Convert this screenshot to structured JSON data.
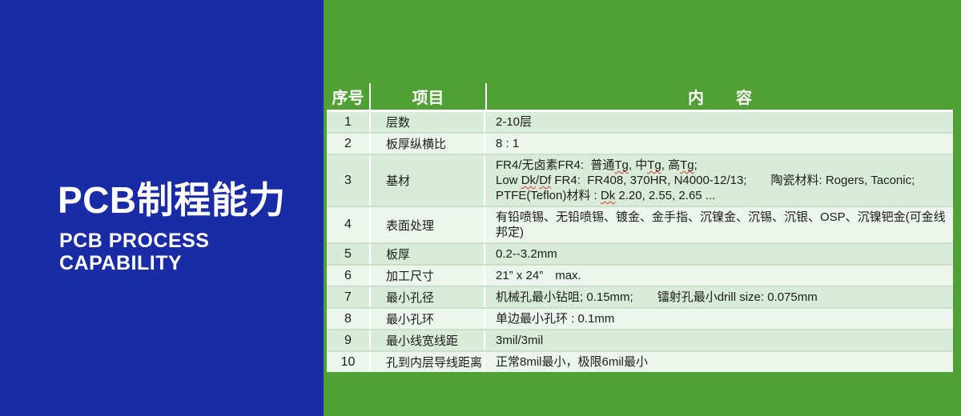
{
  "left_panel": {
    "title": "PCB制程能力",
    "subtitle_line1": "PCB PROCESS",
    "subtitle_line2": "CAPABILITY"
  },
  "table": {
    "headers": [
      "序号",
      "项目",
      "内　　容"
    ],
    "rows": [
      {
        "no": "1",
        "item": "层数",
        "content": [
          "2-10层"
        ]
      },
      {
        "no": "2",
        "item": "板厚纵横比",
        "content": [
          "8 : 1"
        ]
      },
      {
        "no": "3",
        "item": "基材",
        "content": [
          "FR4/无卤素FR4:  普通Tg, 中Tg, 高Tg;",
          "Low Dk/Df FR4:  FR408, 370HR, N4000-12/13;　　陶瓷材料: Rogers, Taconic;",
          "PTFE(Teflon)材料 : Dk 2.20, 2.55, 2.65 ..."
        ]
      },
      {
        "no": "4",
        "item": "表面处理",
        "content": [
          "有铅喷锡、无铅喷锡、镀金、金手指、沉镍金、沉锡、沉银、OSP、沉镍钯金(可金线邦定)"
        ]
      },
      {
        "no": "5",
        "item": "板厚",
        "content": [
          "0.2--3.2mm"
        ]
      },
      {
        "no": "6",
        "item": "加工尺寸",
        "content": [
          "21” x 24”　max."
        ]
      },
      {
        "no": "7",
        "item": "最小孔径",
        "content": [
          "机械孔最小钻咀; 0.15mm;　　镭射孔最小drill size: 0.075mm"
        ]
      },
      {
        "no": "8",
        "item": "最小孔环",
        "content": [
          "单边最小孔环 : 0.1mm"
        ]
      },
      {
        "no": "9",
        "item": "最小线宽线距",
        "content": [
          "3mil/3mil"
        ]
      },
      {
        "no": "10",
        "item": "孔到内层导线距离",
        "content": [
          "正常8mil最小，极限6mil最小"
        ]
      }
    ]
  },
  "spellcheck_tokens": [
    "Tg",
    "Dk",
    "Df"
  ],
  "colors": {
    "panel_blue": "#1A2BA6",
    "background_green": "#51A036",
    "row_odd": "#D9ECD9",
    "row_even": "#ECF6EC",
    "row_separator": "#CBE0C8",
    "header_text": "#FFFFFF",
    "body_text": "#1C1C1C",
    "spellcheck_red": "#D43A2F"
  }
}
